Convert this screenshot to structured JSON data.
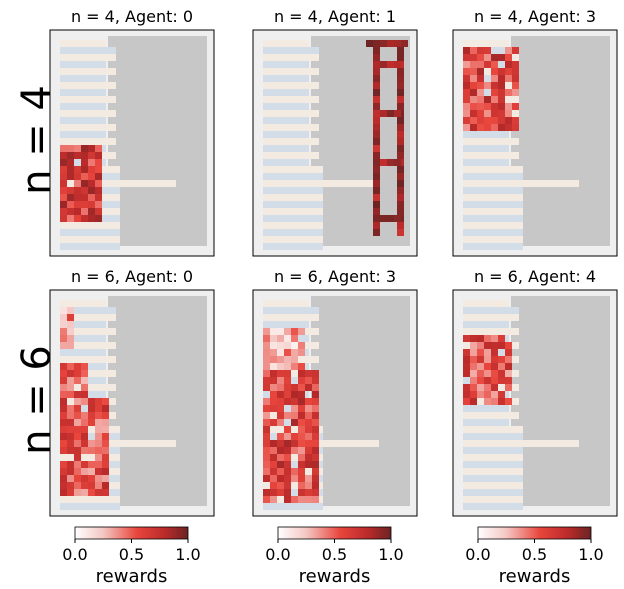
{
  "row_labels": [
    "n = 4",
    "n = 6"
  ],
  "colorbar": {
    "label": "rewards",
    "ticks": [
      "0.0",
      "0.5",
      "1.0"
    ],
    "cmap": [
      "#ffffff",
      "#f4c7c3",
      "#e8453c",
      "#b92a2a",
      "#6b2424"
    ]
  },
  "colors": {
    "wall": "#c7c7c7",
    "floor_a": "#f3ebe1",
    "floor_b": "#d2dde7",
    "frame_bg": "#efefef"
  },
  "chart_data": [
    {
      "type": "heatmap",
      "title": "n = 4, Agent: 0",
      "n": "4",
      "agent": "0",
      "cmap_range": [
        0,
        1
      ],
      "colorbar_label": "rewards"
    },
    {
      "type": "heatmap",
      "title": "n = 4, Agent: 1",
      "n": "4",
      "agent": "1",
      "cmap_range": [
        0,
        1
      ],
      "colorbar_label": "rewards"
    },
    {
      "type": "heatmap",
      "title": "n = 4, Agent: 3",
      "n": "4",
      "agent": "3",
      "cmap_range": [
        0,
        1
      ],
      "colorbar_label": "rewards"
    },
    {
      "type": "heatmap",
      "title": "n = 6, Agent: 0",
      "n": "6",
      "agent": "0",
      "cmap_range": [
        0,
        1
      ],
      "colorbar_label": "rewards"
    },
    {
      "type": "heatmap",
      "title": "n = 6, Agent: 3",
      "n": "6",
      "agent": "3",
      "cmap_range": [
        0,
        1
      ],
      "colorbar_label": "rewards"
    },
    {
      "type": "heatmap",
      "title": "n = 6, Agent: 4",
      "n": "6",
      "agent": "4",
      "cmap_range": [
        0,
        1
      ],
      "colorbar_label": "rewards"
    }
  ]
}
